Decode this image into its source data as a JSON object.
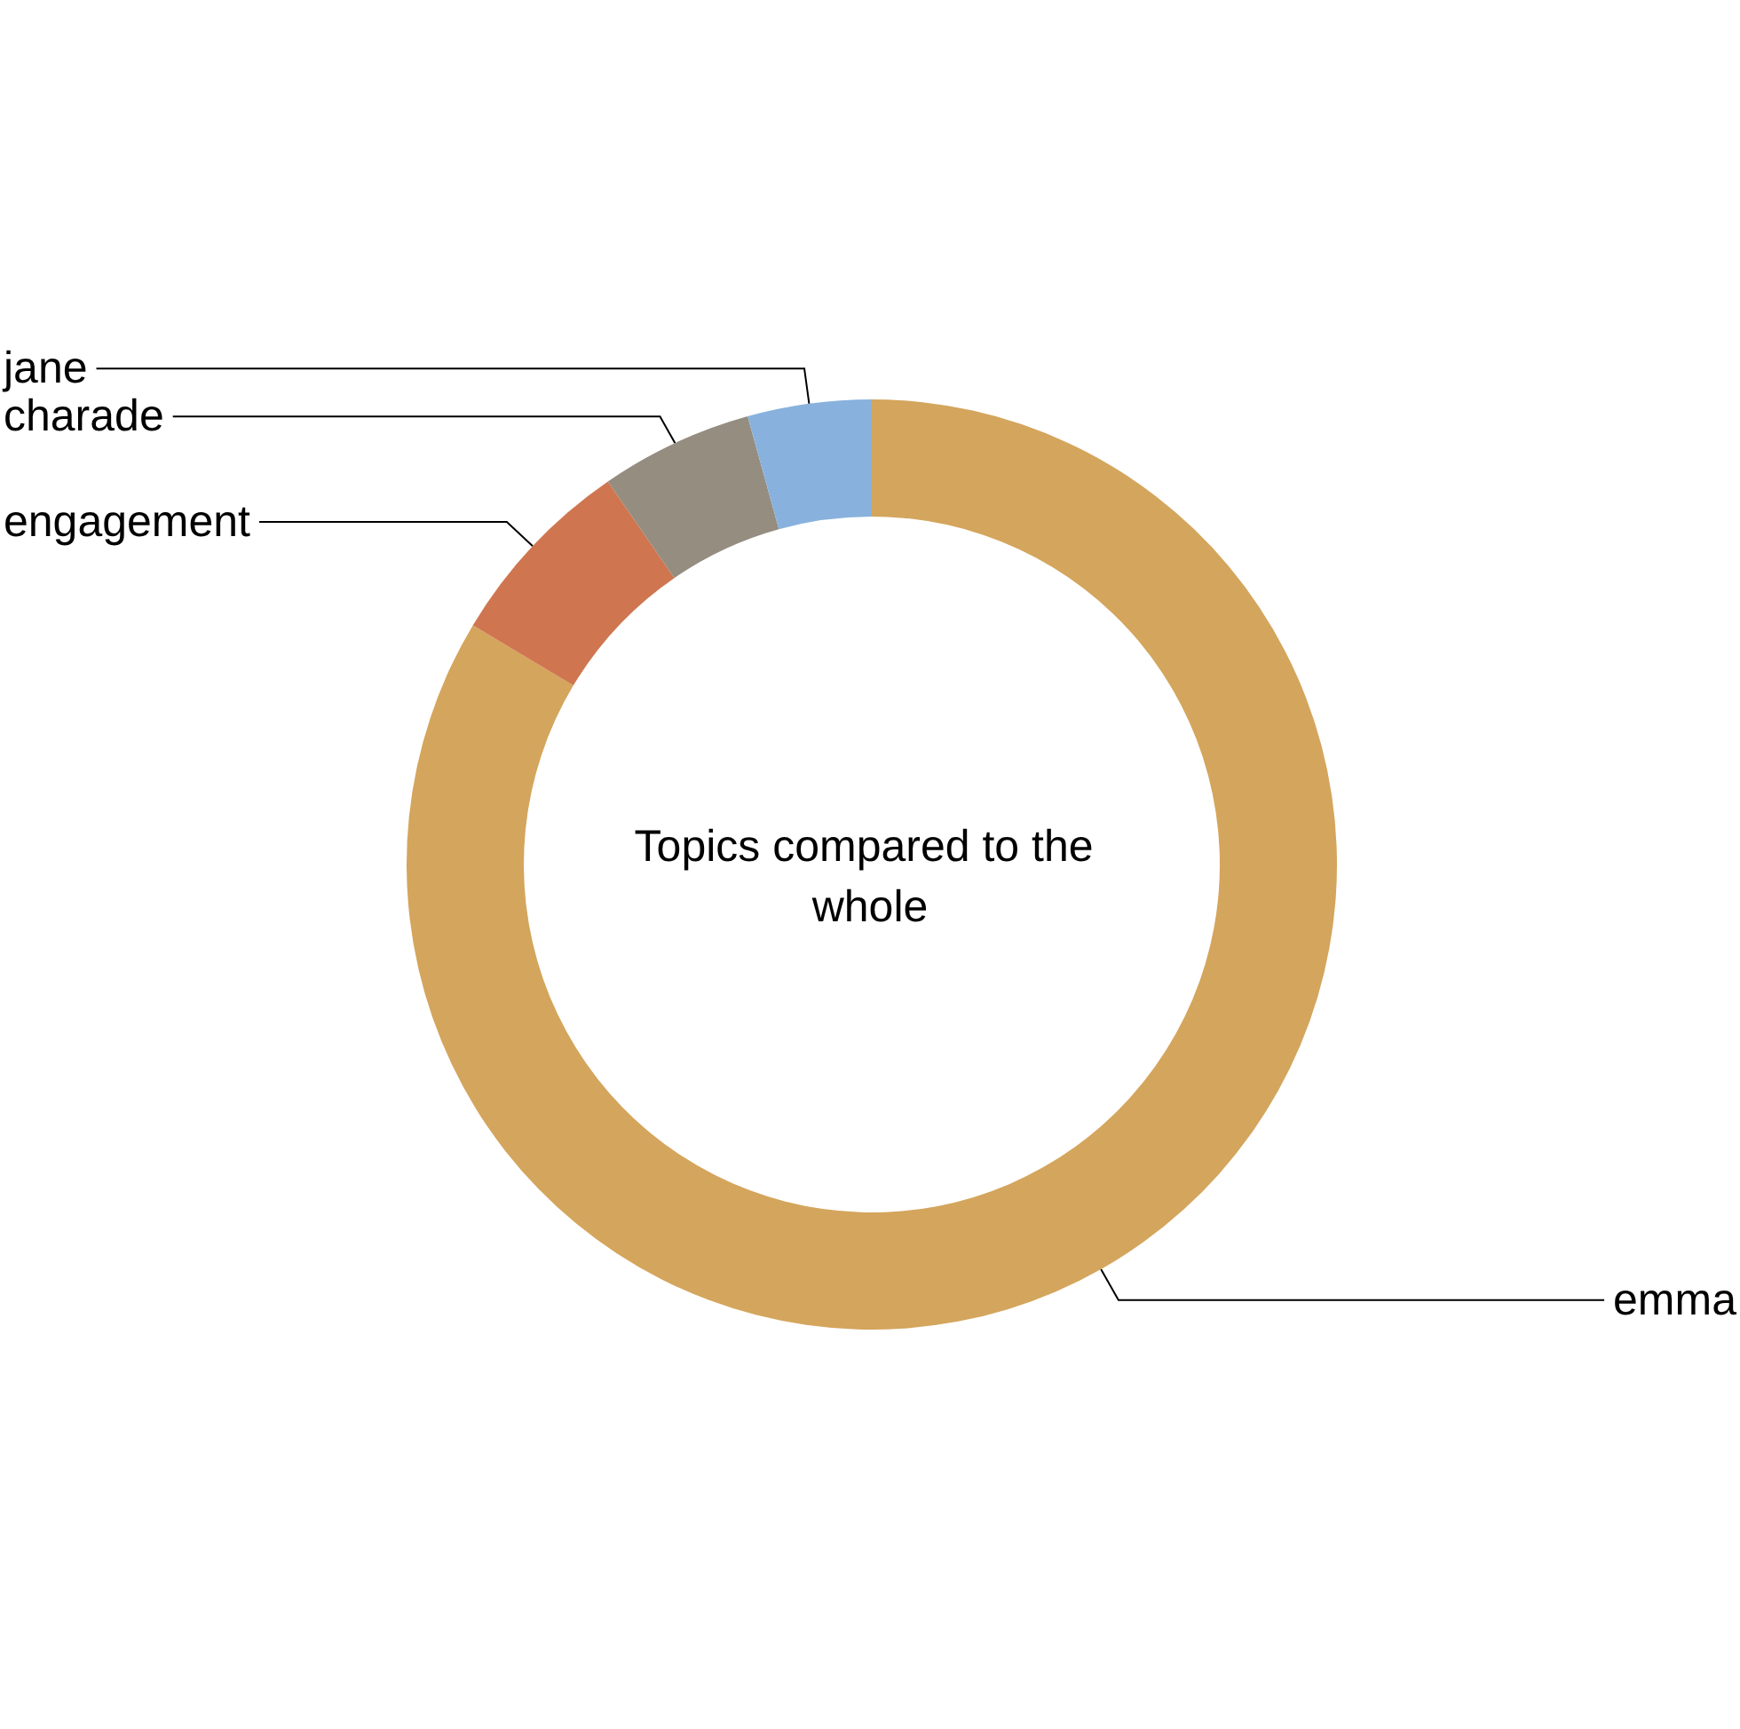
{
  "chart_data": {
    "type": "donut",
    "title": "Topics compared to the whole",
    "categories": [
      "emma",
      "engagement",
      "charade",
      "jane"
    ],
    "values": [
      83.6,
      6.8,
      5.3,
      4.3
    ],
    "colors": [
      "#d4a55c",
      "#cf7650",
      "#958d80",
      "#88b2dd"
    ]
  }
}
